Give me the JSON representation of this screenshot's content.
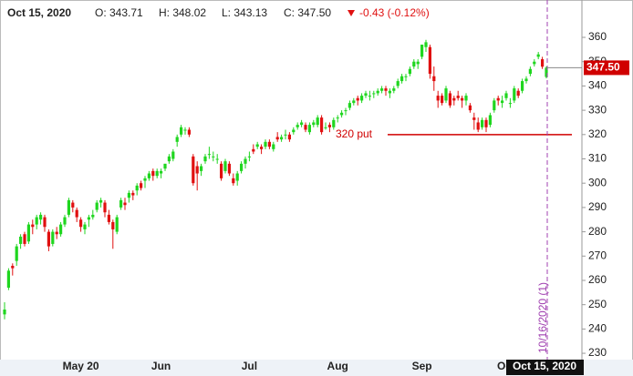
{
  "chart_data": {
    "type": "candlestick",
    "header": {
      "date": "Oct 15, 2020",
      "open": "O: 343.71",
      "high": "H: 348.02",
      "low": "L: 343.13",
      "close": "C: 347.50",
      "change": "-0.43 (-0.12%)"
    },
    "up_color": "#1fd61f",
    "down_color": "#e01010",
    "ylim": [
      227.4,
      373.5
    ],
    "yticks": [
      230,
      240,
      250,
      260,
      270,
      280,
      290,
      300,
      310,
      320,
      330,
      340,
      350,
      360
    ],
    "grid": false,
    "last_price": {
      "value": 347.5,
      "label": "347.50"
    },
    "level_line": {
      "value": 320,
      "label": "320 put"
    },
    "event_line": {
      "label": "10/16/2020 (1)"
    },
    "categories": [
      null,
      null,
      null,
      null,
      null,
      null,
      null,
      null,
      null,
      null,
      null,
      null,
      null,
      null,
      null,
      null,
      null,
      null,
      null,
      "May 20",
      null,
      null,
      null,
      null,
      null,
      null,
      null,
      null,
      null,
      null,
      null,
      null,
      null,
      null,
      null,
      null,
      null,
      null,
      null,
      "Jun",
      null,
      null,
      null,
      null,
      null,
      null,
      null,
      null,
      null,
      null,
      null,
      null,
      null,
      null,
      null,
      null,
      null,
      null,
      null,
      null,
      null,
      "Jul",
      null,
      null,
      null,
      null,
      null,
      null,
      null,
      null,
      null,
      null,
      null,
      null,
      null,
      null,
      null,
      null,
      null,
      null,
      null,
      null,
      null,
      "Aug",
      null,
      null,
      null,
      null,
      null,
      null,
      null,
      null,
      null,
      null,
      null,
      null,
      null,
      null,
      null,
      null,
      null,
      null,
      null,
      null,
      "Sep",
      null,
      null,
      null,
      null,
      null,
      null,
      null,
      null,
      null,
      null,
      null,
      null,
      null,
      null,
      null,
      null,
      null,
      null,
      null,
      null,
      "Oct",
      null,
      null,
      null,
      null,
      null,
      null,
      null,
      null,
      null,
      "Oct 15, 2020"
    ],
    "ohlc": [
      [
        246,
        251,
        244,
        248
      ],
      [
        257,
        265,
        256,
        264
      ],
      [
        266,
        267,
        262,
        265
      ],
      [
        268,
        275,
        266,
        274
      ],
      [
        275,
        279,
        273,
        278
      ],
      [
        279,
        280,
        274,
        275
      ],
      [
        276,
        284,
        275,
        283
      ],
      [
        283,
        285,
        279,
        282
      ],
      [
        283,
        287,
        281,
        286
      ],
      [
        285,
        288,
        283,
        287
      ],
      [
        286,
        287,
        280,
        282
      ],
      [
        280,
        281,
        272,
        274
      ],
      [
        275,
        281,
        274,
        280
      ],
      [
        280,
        282,
        277,
        279
      ],
      [
        279,
        284,
        278,
        283
      ],
      [
        283,
        287,
        282,
        286
      ],
      [
        287,
        294,
        286,
        293
      ],
      [
        292,
        293,
        288,
        290
      ],
      [
        289,
        290,
        284,
        286
      ],
      [
        285,
        286,
        280,
        282
      ],
      [
        281,
        284,
        279,
        283
      ],
      [
        285,
        287,
        282,
        286
      ],
      [
        286,
        289,
        285,
        287
      ],
      [
        289,
        293,
        288,
        292
      ],
      [
        292,
        294,
        290,
        293
      ],
      [
        292,
        293,
        286,
        288
      ],
      [
        287,
        289,
        283,
        284
      ],
      [
        284,
        285,
        273,
        281
      ],
      [
        280,
        287,
        279,
        286
      ],
      [
        290,
        294,
        289,
        293
      ],
      [
        292,
        294,
        289,
        291
      ],
      [
        294,
        297,
        292,
        296
      ],
      [
        296,
        297,
        293,
        295
      ],
      [
        297,
        300,
        295,
        299
      ],
      [
        300,
        301,
        297,
        298
      ],
      [
        301,
        303,
        298,
        302
      ],
      [
        302,
        305,
        301,
        304
      ],
      [
        305,
        306,
        301,
        303
      ],
      [
        303,
        306,
        302,
        305
      ],
      [
        304,
        306,
        302,
        305
      ],
      [
        306,
        308,
        305,
        308
      ],
      [
        309,
        312,
        308,
        311
      ],
      [
        310,
        314,
        309,
        313
      ],
      [
        317,
        320,
        315,
        319
      ],
      [
        320,
        324,
        319,
        323
      ],
      [
        322,
        323,
        320,
        322
      ],
      [
        322,
        323,
        319,
        320
      ],
      [
        311,
        312,
        299,
        300
      ],
      [
        307,
        309,
        297,
        304
      ],
      [
        305,
        308,
        303,
        307
      ],
      [
        309,
        312,
        308,
        311
      ],
      [
        312,
        315,
        310,
        312
      ],
      [
        311,
        313,
        309,
        311
      ],
      [
        310,
        312,
        308,
        310
      ],
      [
        308,
        309,
        301,
        302
      ],
      [
        305,
        310,
        304,
        309
      ],
      [
        308,
        309,
        303,
        304
      ],
      [
        302,
        304,
        299,
        300
      ],
      [
        301,
        305,
        299,
        304
      ],
      [
        305,
        309,
        304,
        308
      ],
      [
        308,
        311,
        306,
        310
      ],
      [
        311,
        313,
        309,
        311
      ],
      [
        314,
        316,
        312,
        313
      ],
      [
        315,
        317,
        314,
        316
      ],
      [
        315,
        316,
        312,
        314
      ],
      [
        315,
        318,
        314,
        317
      ],
      [
        317,
        318,
        314,
        315
      ],
      [
        314,
        317,
        313,
        316
      ],
      [
        319,
        321,
        317,
        318
      ],
      [
        318,
        320,
        317,
        319
      ],
      [
        320,
        322,
        318,
        320
      ],
      [
        320,
        321,
        317,
        318
      ],
      [
        321,
        323,
        320,
        322
      ],
      [
        323,
        325,
        322,
        324
      ],
      [
        324,
        326,
        323,
        325
      ],
      [
        324,
        325,
        321,
        322
      ],
      [
        321,
        325,
        320,
        324
      ],
      [
        324,
        326,
        323,
        325
      ],
      [
        324,
        328,
        323,
        327
      ],
      [
        327,
        328,
        320,
        321
      ],
      [
        323,
        325,
        322,
        323
      ],
      [
        324,
        325,
        321,
        323
      ],
      [
        323,
        327,
        322,
        326
      ],
      [
        327,
        328,
        325,
        327
      ],
      [
        328,
        330,
        327,
        329
      ],
      [
        330,
        331,
        328,
        330
      ],
      [
        331,
        334,
        330,
        333
      ],
      [
        333,
        335,
        332,
        334
      ],
      [
        335,
        336,
        332,
        334
      ],
      [
        334,
        337,
        333,
        336
      ],
      [
        336,
        338,
        335,
        337
      ],
      [
        336,
        338,
        334,
        336
      ],
      [
        337,
        338,
        335,
        337
      ],
      [
        337,
        339,
        336,
        338
      ],
      [
        338,
        340,
        337,
        339
      ],
      [
        339,
        340,
        336,
        338
      ],
      [
        337,
        339,
        335,
        338
      ],
      [
        338,
        340,
        337,
        339
      ],
      [
        340,
        343,
        339,
        342
      ],
      [
        342,
        345,
        341,
        344
      ],
      [
        344,
        345,
        342,
        344
      ],
      [
        345,
        348,
        344,
        347
      ],
      [
        348,
        351,
        347,
        350
      ],
      [
        349,
        351,
        347,
        350
      ],
      [
        352,
        357,
        351,
        357
      ],
      [
        356,
        359,
        354,
        358
      ],
      [
        356,
        357,
        343,
        345
      ],
      [
        344,
        348,
        338,
        342
      ],
      [
        336,
        338,
        331,
        334
      ],
      [
        336,
        337,
        332,
        333
      ],
      [
        334,
        340,
        333,
        339
      ],
      [
        337,
        338,
        331,
        332
      ],
      [
        335,
        336,
        332,
        334
      ],
      [
        336,
        338,
        334,
        335
      ],
      [
        335,
        336,
        331,
        334
      ],
      [
        334,
        337,
        332,
        336
      ],
      [
        332,
        333,
        329,
        330
      ],
      [
        327,
        329,
        322,
        326
      ],
      [
        325,
        327,
        321,
        322
      ],
      [
        323,
        327,
        322,
        326
      ],
      [
        326,
        327,
        321,
        323
      ],
      [
        324,
        329,
        323,
        328
      ],
      [
        330,
        335,
        329,
        334
      ],
      [
        335,
        336,
        332,
        334
      ],
      [
        333,
        336,
        331,
        334
      ],
      [
        335,
        338,
        334,
        337
      ],
      [
        333,
        335,
        331,
        333
      ],
      [
        334,
        340,
        333,
        339
      ],
      [
        338,
        339,
        335,
        336
      ],
      [
        338,
        343,
        337,
        342
      ],
      [
        342,
        344,
        341,
        343
      ],
      [
        345,
        348,
        344,
        347
      ],
      [
        349,
        351,
        348,
        350
      ],
      [
        352,
        354,
        351,
        353
      ],
      [
        351,
        352,
        347,
        347.93
      ],
      [
        343.71,
        348.02,
        343.13,
        347.5
      ]
    ]
  }
}
